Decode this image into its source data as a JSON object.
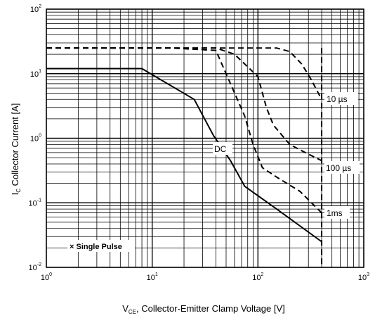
{
  "chart_data": {
    "type": "line",
    "x_scale": "log",
    "y_scale": "log",
    "xlim": [
      1,
      1000
    ],
    "ylim": [
      0.01,
      100
    ],
    "grid": true,
    "x_ticks": [
      {
        "base": "10",
        "exp": "0"
      },
      {
        "base": "10",
        "exp": "1"
      },
      {
        "base": "10",
        "exp": "2"
      },
      {
        "base": "10",
        "exp": "3"
      }
    ],
    "y_ticks": [
      {
        "base": "10",
        "exp": "2"
      },
      {
        "base": "10",
        "exp": "1"
      },
      {
        "base": "10",
        "exp": "0"
      },
      {
        "base": "10",
        "exp": "-1"
      },
      {
        "base": "10",
        "exp": "-2"
      }
    ],
    "xlabel": {
      "main": "V",
      "sub": "CE",
      "rest": ", Collector-Emitter Clamp Voltage [V]"
    },
    "ylabel": {
      "main": "I",
      "sub": "C",
      "rest": " Collector Current [A]"
    },
    "annotations": {
      "single_pulse": "× Single Pulse",
      "dc": "DC",
      "us10": "10 µs",
      "us100": "100 µs",
      "ms1": "1ms"
    },
    "series": [
      {
        "key": "dc",
        "style": "solid",
        "x": [
          1,
          8,
          25,
          38,
          55,
          75,
          150,
          400
        ],
        "y": [
          12,
          12,
          4,
          1.1,
          0.45,
          0.18,
          0.08,
          0.025
        ]
      },
      {
        "key": "1ms",
        "style": "dashed",
        "x": [
          1,
          15,
          40,
          55,
          75,
          90,
          110,
          150,
          250,
          400
        ],
        "y": [
          25,
          25,
          23,
          7,
          2.2,
          0.8,
          0.35,
          0.25,
          0.15,
          0.07
        ]
      },
      {
        "key": "100us",
        "style": "dashed",
        "x": [
          1,
          40,
          60,
          100,
          120,
          140,
          200,
          280,
          400
        ],
        "y": [
          25,
          25,
          20,
          9,
          3,
          1.6,
          0.8,
          0.6,
          0.45
        ]
      },
      {
        "key": "10us",
        "style": "dashed",
        "x": [
          1,
          150,
          200,
          260,
          320,
          400
        ],
        "y": [
          25,
          25,
          22,
          14,
          8,
          4
        ]
      }
    ],
    "clamp": {
      "x": 400,
      "y": [
        0.01,
        25
      ]
    }
  }
}
